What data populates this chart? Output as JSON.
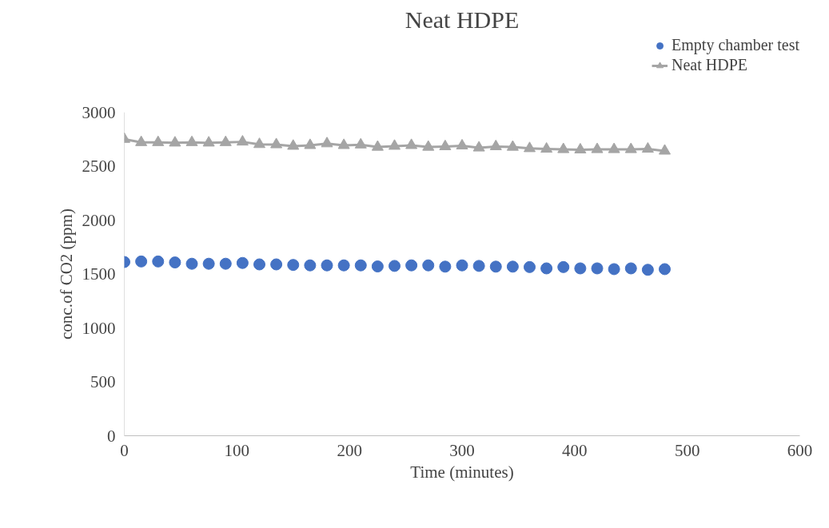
{
  "chart_data": {
    "type": "line",
    "title": "Neat HDPE",
    "xlabel": "Time (minutes)",
    "ylabel": "conc.of CO2 (ppm)",
    "x": [
      0,
      15,
      30,
      45,
      60,
      75,
      90,
      105,
      120,
      135,
      150,
      165,
      180,
      195,
      210,
      225,
      240,
      255,
      270,
      285,
      300,
      315,
      330,
      345,
      360,
      375,
      390,
      405,
      420,
      435,
      450,
      465,
      480
    ],
    "series": [
      {
        "name": "Empty chamber test",
        "type": "scatter",
        "marker": "circle",
        "color": "#4472c4",
        "values": [
          1611,
          1616,
          1616,
          1607,
          1595,
          1595,
          1595,
          1602,
          1589,
          1589,
          1584,
          1580,
          1580,
          1580,
          1580,
          1570,
          1575,
          1580,
          1580,
          1568,
          1580,
          1575,
          1568,
          1568,
          1564,
          1552,
          1564,
          1552,
          1552,
          1545,
          1552,
          1539,
          1545
        ]
      },
      {
        "name": "Neat HDPE",
        "marker": "triangle",
        "color": "#a5a5a5",
        "values": [
          2750,
          2720,
          2720,
          2716,
          2720,
          2716,
          2720,
          2725,
          2702,
          2700,
          2686,
          2693,
          2709,
          2693,
          2698,
          2677,
          2686,
          2693,
          2677,
          2682,
          2689,
          2670,
          2682,
          2677,
          2664,
          2659,
          2655,
          2652,
          2655,
          2655,
          2655,
          2659,
          2641
        ]
      }
    ],
    "xlim": [
      0,
      600
    ],
    "xticks": [
      0,
      100,
      200,
      300,
      400,
      500,
      600
    ],
    "ylim": [
      0,
      3000
    ],
    "yticks": [
      0,
      500,
      1000,
      1500,
      2000,
      2500,
      3000
    ],
    "grid": false,
    "legend": "top right"
  }
}
